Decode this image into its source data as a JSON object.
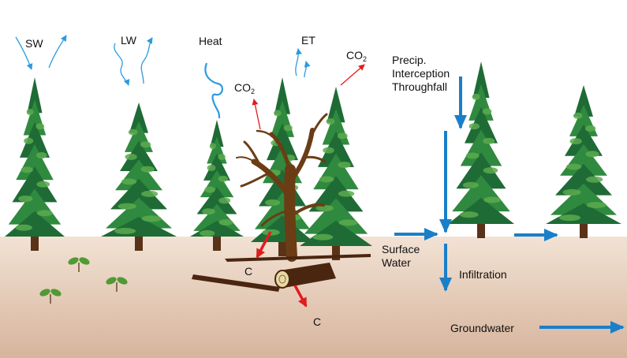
{
  "labels": {
    "sw": "SW",
    "lw": "LW",
    "heat": "Heat",
    "et": "ET",
    "co2_base": "CO",
    "co2_sub": "2",
    "precip": "Precip.",
    "interception": "Interception",
    "throughfall": "Throughfall",
    "surface_1": "Surface",
    "surface_2": "Water",
    "infiltration": "Infiltration",
    "groundwater": "Groundwater",
    "carbon": "C"
  },
  "colors": {
    "sky": "#ffffff",
    "soil_top": "#f2e2d4",
    "soil_bottom": "#d7b49c",
    "tree_dark": "#1f6b35",
    "tree_mid": "#2f8a3f",
    "tree_light": "#5aa94d",
    "trunk": "#5a3218",
    "dead_tree": "#6b3d14",
    "log": "#4a2610",
    "water_arrow": "#1a7fc9",
    "radiation_arrow": "#2b9be0",
    "carbon_arrow": "#e01d1d",
    "seedling": "#4f9a35"
  }
}
